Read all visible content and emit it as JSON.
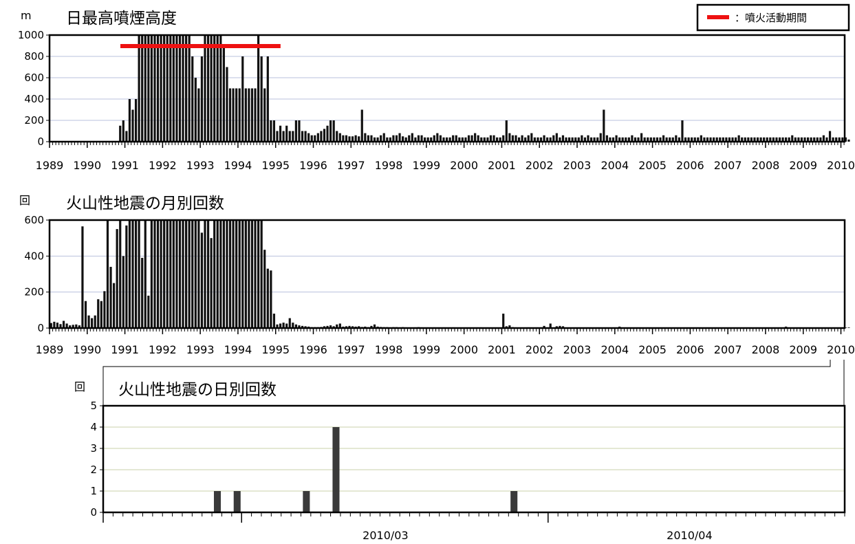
{
  "legend": {
    "label": "：噴火活動期間",
    "color": "#ee1111"
  },
  "years": [
    "1989",
    "1990",
    "1991",
    "1992",
    "1993",
    "1994",
    "1995",
    "1996",
    "1997",
    "1998",
    "1999",
    "2000",
    "2001",
    "2002",
    "2003",
    "2004",
    "2005",
    "2006",
    "2007",
    "2008",
    "2009",
    "2010"
  ],
  "chart_data": [
    {
      "type": "bar",
      "title": "日最高噴煙高度",
      "ylabel": "m",
      "ylim": [
        0,
        1000
      ],
      "yticks": [
        "0",
        "200",
        "400",
        "600",
        "800",
        "1000"
      ],
      "xlim": [
        1989,
        2010.1
      ],
      "eruption_period": {
        "start": 1990.88,
        "end": 1995.13,
        "label": "：噴火活動期間"
      },
      "monthly_peak_height_m": [
        0,
        0,
        0,
        0,
        0,
        0,
        0,
        0,
        0,
        0,
        0,
        0,
        0,
        0,
        0,
        0,
        0,
        0,
        0,
        0,
        0,
        0,
        150,
        200,
        100,
        400,
        300,
        400,
        1000,
        1000,
        1000,
        1000,
        1000,
        1000,
        1000,
        1000,
        1000,
        1000,
        1000,
        1000,
        1000,
        1000,
        1000,
        1000,
        1000,
        800,
        600,
        500,
        800,
        1000,
        1000,
        1000,
        1000,
        1000,
        1000,
        900,
        700,
        500,
        500,
        500,
        500,
        800,
        500,
        500,
        500,
        500,
        1000,
        800,
        500,
        800,
        200,
        200,
        100,
        150,
        100,
        150,
        100,
        100,
        200,
        200,
        100,
        100,
        80,
        60,
        60,
        80,
        100,
        120,
        150,
        200,
        200,
        100,
        80,
        60,
        60,
        50,
        50,
        60,
        50,
        300,
        80,
        60,
        60,
        40,
        40,
        60,
        80,
        40,
        40,
        60,
        60,
        80,
        50,
        40,
        60,
        80,
        40,
        60,
        60,
        40,
        40,
        40,
        60,
        80,
        60,
        40,
        40,
        40,
        60,
        60,
        40,
        40,
        40,
        60,
        60,
        80,
        60,
        40,
        40,
        40,
        60,
        60,
        40,
        40,
        60,
        200,
        80,
        60,
        60,
        40,
        60,
        40,
        60,
        80,
        40,
        40,
        40,
        60,
        40,
        40,
        60,
        80,
        40,
        60,
        40,
        40,
        40,
        40,
        40,
        60,
        40,
        60,
        40,
        40,
        40,
        80,
        300,
        60,
        40,
        40,
        60,
        40,
        40,
        40,
        40,
        60,
        40,
        40,
        80,
        40,
        40,
        40,
        40,
        40,
        40,
        60,
        40,
        40,
        40,
        60,
        40,
        200,
        40,
        40,
        40,
        40,
        40,
        60,
        40,
        40,
        40,
        40,
        40,
        40,
        40,
        40,
        40,
        40,
        40,
        60,
        40,
        40,
        40,
        40,
        40,
        40,
        40,
        40,
        40,
        40,
        40,
        40,
        40,
        40,
        40,
        40,
        60,
        40,
        40,
        40,
        40,
        40,
        40,
        40,
        40,
        40,
        60,
        40,
        100,
        40,
        40,
        40,
        40,
        40,
        20
      ]
    },
    {
      "type": "bar",
      "title": "火山性地震の月別回数",
      "ylabel": "回",
      "ylim": [
        0,
        600
      ],
      "yticks": [
        "0",
        "200",
        "400",
        "600"
      ],
      "xlim": [
        1989,
        2010.1
      ],
      "monthly_counts": [
        28,
        35,
        30,
        22,
        40,
        25,
        15,
        18,
        20,
        15,
        565,
        150,
        70,
        55,
        70,
        160,
        150,
        205,
        600,
        340,
        250,
        550,
        600,
        400,
        570,
        600,
        600,
        600,
        600,
        390,
        600,
        180,
        600,
        600,
        600,
        600,
        600,
        600,
        600,
        600,
        600,
        600,
        600,
        600,
        600,
        600,
        600,
        600,
        530,
        600,
        600,
        500,
        600,
        600,
        600,
        600,
        600,
        600,
        600,
        600,
        600,
        600,
        600,
        600,
        600,
        600,
        600,
        600,
        435,
        330,
        320,
        80,
        20,
        25,
        30,
        25,
        55,
        30,
        20,
        15,
        12,
        10,
        8,
        5,
        5,
        5,
        6,
        10,
        12,
        15,
        10,
        20,
        25,
        8,
        10,
        12,
        10,
        8,
        10,
        6,
        8,
        5,
        12,
        20,
        8,
        6,
        5,
        5,
        4,
        5,
        5,
        4,
        5,
        4,
        3,
        3,
        4,
        5,
        4,
        3,
        3,
        3,
        4,
        3,
        3,
        4,
        3,
        3,
        4,
        3,
        3,
        3,
        3,
        3,
        3,
        3,
        3,
        4,
        3,
        3,
        3,
        3,
        3,
        3,
        80,
        10,
        15,
        5,
        4,
        3,
        3,
        3,
        4,
        3,
        3,
        3,
        4,
        12,
        4,
        25,
        3,
        10,
        12,
        10,
        3,
        3,
        3,
        3,
        3,
        3,
        3,
        3,
        3,
        3,
        3,
        3,
        3,
        3,
        3,
        3,
        3,
        8,
        3,
        3,
        3,
        3,
        3,
        3,
        3,
        3,
        3,
        3,
        3,
        3,
        3,
        3,
        3,
        3,
        3,
        3,
        3,
        3,
        3,
        3,
        3,
        3,
        3,
        3,
        3,
        3,
        3,
        3,
        3,
        3,
        3,
        3,
        3,
        3,
        3,
        3,
        3,
        3,
        3,
        3,
        3,
        3,
        3,
        3,
        3,
        3,
        3,
        3,
        3,
        3,
        8,
        3,
        3,
        3,
        3,
        3,
        3,
        3,
        3,
        3,
        3,
        3,
        3,
        3,
        3,
        3,
        3,
        3,
        3,
        3,
        3
      ]
    },
    {
      "type": "bar",
      "title": "火山性地震の日別回数",
      "ylabel": "回",
      "ylim": [
        0,
        5
      ],
      "yticks": [
        "0",
        "1",
        "2",
        "3",
        "4",
        "5"
      ],
      "xlim": [
        "2010/02/15",
        "2010/04/30"
      ],
      "month_labels": [
        {
          "label": "2010/03",
          "date": "2010/03/01"
        },
        {
          "label": "2010/04",
          "date": "2010/04/01"
        }
      ],
      "bars": [
        {
          "date": "2010/02/26",
          "value": 1
        },
        {
          "date": "2010/02/28",
          "value": 1
        },
        {
          "date": "2010/03/07",
          "value": 1
        },
        {
          "date": "2010/03/10",
          "value": 4
        },
        {
          "date": "2010/03/28",
          "value": 1
        }
      ]
    }
  ]
}
